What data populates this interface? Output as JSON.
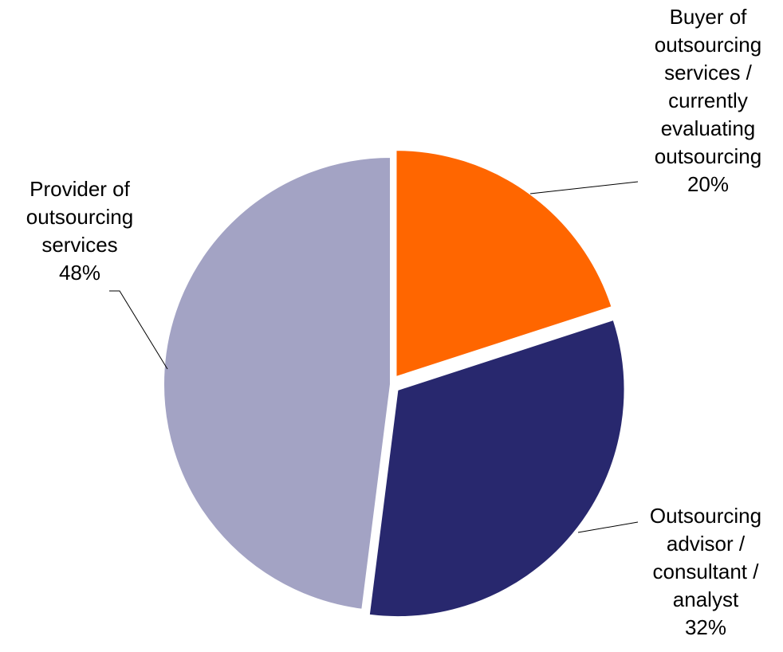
{
  "chart_data": {
    "type": "pie",
    "categories": [
      "Buyer of outsourcing services / currently evaluating outsourcing",
      "Outsourcing advisor / consultant / analyst",
      "Provider of outsourcing services"
    ],
    "values": [
      20,
      32,
      48
    ],
    "value_labels": [
      "20%",
      "32%",
      "48%"
    ],
    "colors": [
      "#ff6600",
      "#28286e",
      "#a3a3c4"
    ]
  }
}
